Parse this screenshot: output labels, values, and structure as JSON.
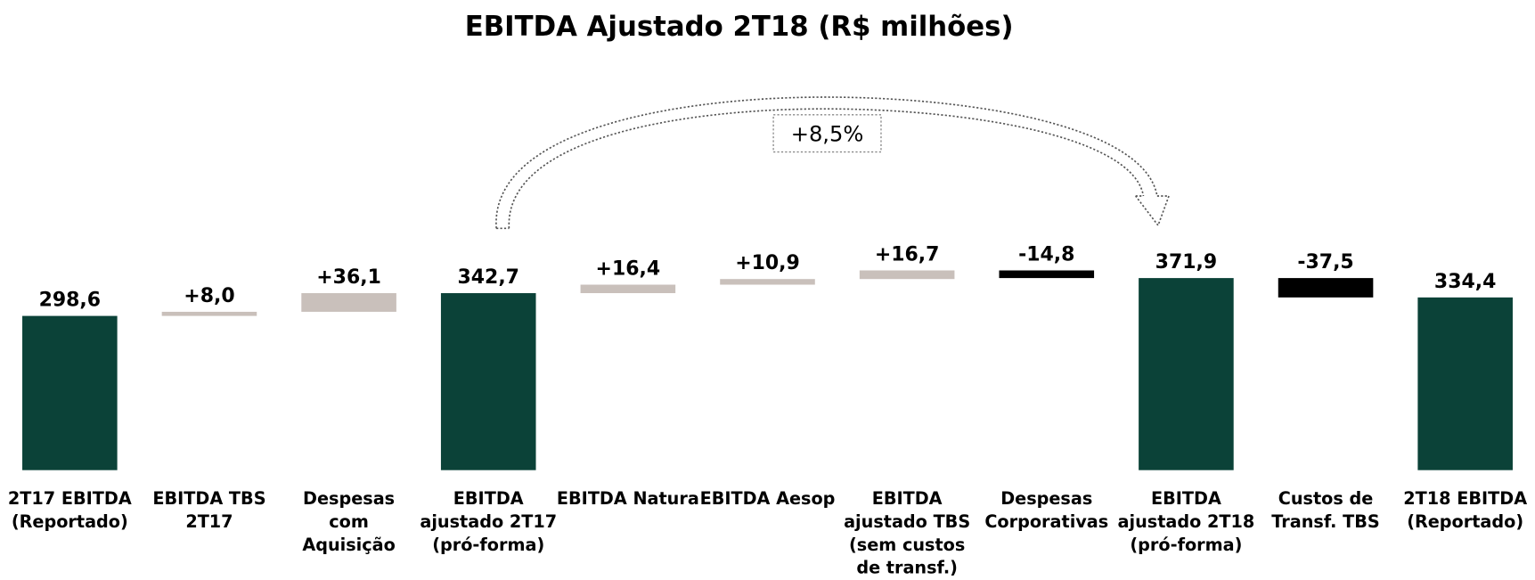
{
  "chart_data": {
    "type": "waterfall",
    "title": "EBITDA  Ajustado 2T18 (R$ milhões)",
    "categories": [
      [
        "2T17 EBITDA",
        "(Reportado)"
      ],
      [
        "EBITDA TBS",
        "2T17"
      ],
      [
        "Despesas",
        "com",
        "Aquisição"
      ],
      [
        "EBITDA",
        "ajustado 2T17",
        "(pró-forma)"
      ],
      [
        "EBITDA Natura"
      ],
      [
        "EBITDA Aesop"
      ],
      [
        "EBITDA",
        "ajustado TBS",
        "(sem custos",
        "de transf.)"
      ],
      [
        "Despesas",
        "Corporativas"
      ],
      [
        "EBITDA",
        "ajustado 2T18",
        "(pró-forma)"
      ],
      [
        "Custos de",
        "Transf. TBS"
      ],
      [
        "2T18 EBITDA",
        "(Reportado)"
      ]
    ],
    "values": [
      298.6,
      8.0,
      36.1,
      342.7,
      16.4,
      10.9,
      16.7,
      -14.8,
      371.9,
      -37.5,
      334.4
    ],
    "value_labels": [
      "298,6",
      "+8,0",
      "+36,1",
      "342,7",
      "+16,4",
      "+10,9",
      "+16,7",
      "-14,8",
      "371,9",
      "-37,5",
      "334,4"
    ],
    "measure": [
      "total",
      "relative",
      "relative",
      "total",
      "relative",
      "relative",
      "relative",
      "relative",
      "total",
      "relative",
      "total"
    ],
    "colors": {
      "total": "#0b4238",
      "increase": "#c9c0bb",
      "decrease": "#000000"
    },
    "annotation": "+8,5%"
  }
}
